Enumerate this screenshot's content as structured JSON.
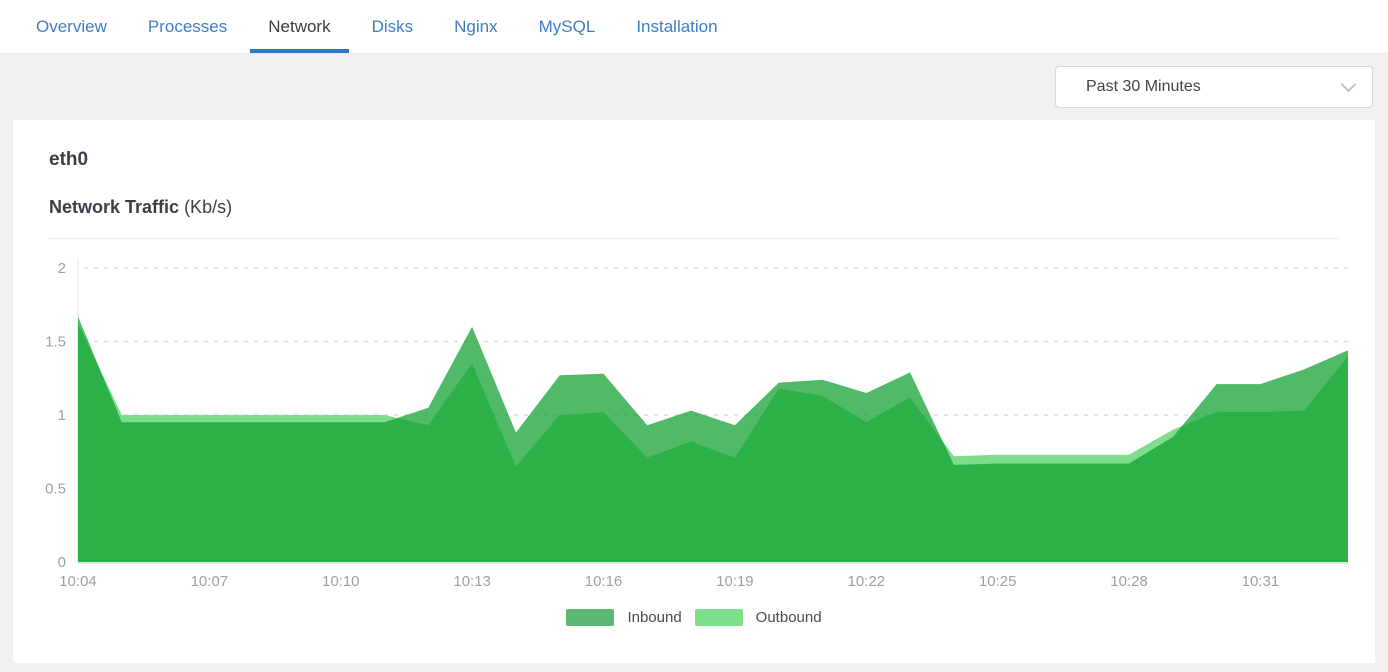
{
  "tabs": {
    "items": [
      {
        "label": "Overview",
        "active": false
      },
      {
        "label": "Processes",
        "active": false
      },
      {
        "label": "Network",
        "active": true
      },
      {
        "label": "Disks",
        "active": false
      },
      {
        "label": "Nginx",
        "active": false
      },
      {
        "label": "MySQL",
        "active": false
      },
      {
        "label": "Installation",
        "active": false
      }
    ]
  },
  "toolbar": {
    "time_range_selected": "Past 30 Minutes"
  },
  "panel": {
    "interface_name": "eth0",
    "chart_title": "Network Traffic",
    "chart_title_unit": "(Kb/s)"
  },
  "colors": {
    "tab_blue": "#3f7ec6",
    "tab_active_text": "#363d44",
    "tab_underline": "#2e76c8",
    "page_background": "#eff1f3",
    "card_background": "#ffffff",
    "inbound_fill": "rgba(13,159,46,0.72)",
    "outbound_fill": "#7edd8c",
    "legend_inbound_swatch": "#5db873",
    "legend_outbound_swatch": "#7de08d",
    "grid_line": "#d9dcdf",
    "axis_line": "#e1e4e6",
    "tick_text": "#9ba1a7"
  },
  "chart_data": {
    "type": "area",
    "title": "Network Traffic (Kb/s)",
    "xlabel": "",
    "ylabel": "Kb/s",
    "ylim": [
      0,
      2
    ],
    "yticks": [
      0,
      0.5,
      1,
      1.5,
      2
    ],
    "ytick_labels": [
      "0",
      "0.5",
      "1",
      "1.5",
      "2"
    ],
    "grid": "horizontal-dashed",
    "legend_position": "bottom",
    "x_label_every": 3,
    "x": [
      "10:04",
      "10:05",
      "10:06",
      "10:07",
      "10:08",
      "10:09",
      "10:10",
      "10:11",
      "10:12",
      "10:13",
      "10:14",
      "10:15",
      "10:16",
      "10:17",
      "10:18",
      "10:19",
      "10:20",
      "10:21",
      "10:22",
      "10:23",
      "10:24",
      "10:25",
      "10:26",
      "10:27",
      "10:28",
      "10:29",
      "10:30",
      "10:31",
      "10:32",
      "10:33"
    ],
    "series": [
      {
        "name": "Outbound",
        "values": [
          1.62,
          1.0,
          1.0,
          1.0,
          1.0,
          1.0,
          1.0,
          1.0,
          0.93,
          1.35,
          0.65,
          1.0,
          1.02,
          0.71,
          0.82,
          0.71,
          1.18,
          1.13,
          0.95,
          1.12,
          0.72,
          0.73,
          0.73,
          0.73,
          0.73,
          0.9,
          1.02,
          1.02,
          1.03,
          1.4
        ]
      },
      {
        "name": "Inbound",
        "values": [
          1.67,
          0.95,
          0.95,
          0.95,
          0.95,
          0.95,
          0.95,
          0.95,
          1.05,
          1.6,
          0.88,
          1.27,
          1.28,
          0.93,
          1.03,
          0.93,
          1.22,
          1.24,
          1.15,
          1.29,
          0.66,
          0.67,
          0.67,
          0.67,
          0.67,
          0.85,
          1.21,
          1.21,
          1.31,
          1.44
        ]
      }
    ],
    "legend": [
      {
        "label": "Inbound",
        "swatch_color": "#5db873"
      },
      {
        "label": "Outbound",
        "swatch_color": "#7de08d"
      }
    ]
  }
}
